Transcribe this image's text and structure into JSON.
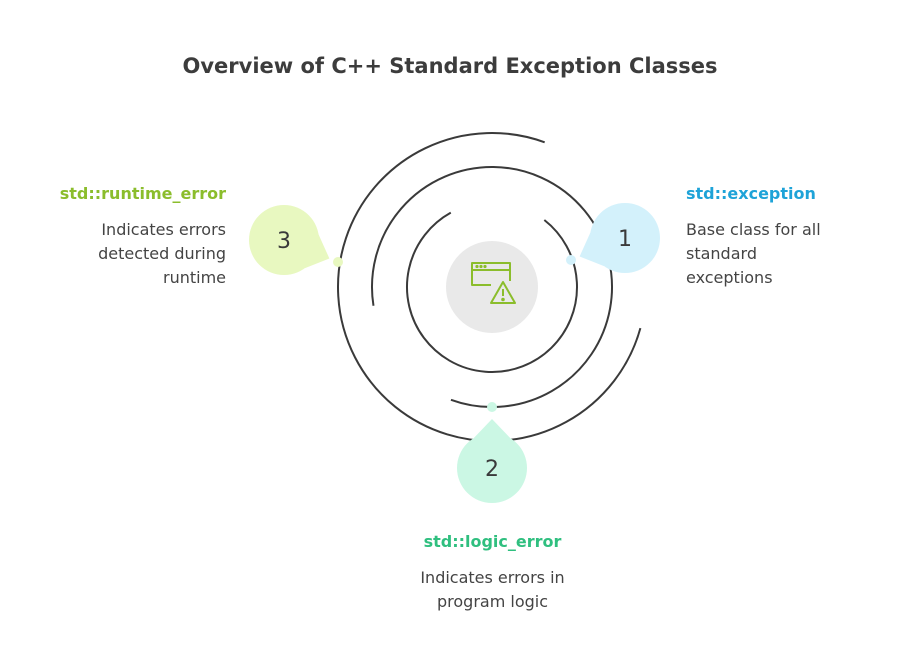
{
  "title": "Overview of C++ Standard Exception Classes",
  "center_icon": "browser-window-warning-icon",
  "items": [
    {
      "number": "1",
      "label": "std::exception",
      "description": "Base class for all standard exceptions",
      "label_color": "#1ea3d8",
      "bubble_color": "#d3f1fb",
      "dot_color": "#d3f1fb"
    },
    {
      "number": "2",
      "label": "std::logic_error",
      "description": "Indicates errors in program logic",
      "label_color": "#2fbf7f",
      "bubble_color": "#cbf7e4",
      "dot_color": "#cbf7e4"
    },
    {
      "number": "3",
      "label": "std::runtime_error",
      "description": "Indicates errors detected during runtime",
      "label_color": "#8bbd2c",
      "bubble_color": "#e8f8c0",
      "dot_color": "#e8f8c0"
    }
  ]
}
